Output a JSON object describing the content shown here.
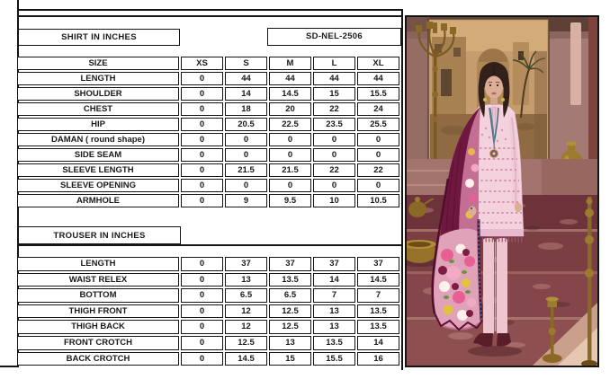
{
  "shirt_section": {
    "title": "SHIRT IN INCHES",
    "article_code": "SD-NEL-2506"
  },
  "trouser_section": {
    "title": "TROUSER IN INCHES"
  },
  "shirt_table": {
    "columns": [
      "SIZE",
      "XS",
      "S",
      "M",
      "L",
      "XL"
    ],
    "rows": [
      {
        "label": "LENGTH",
        "values": [
          "0",
          "44",
          "44",
          "44",
          "44"
        ]
      },
      {
        "label": "SHOULDER",
        "values": [
          "0",
          "14",
          "14.5",
          "15",
          "15.5"
        ]
      },
      {
        "label": "CHEST",
        "values": [
          "0",
          "18",
          "20",
          "22",
          "24"
        ]
      },
      {
        "label": "HIP",
        "values": [
          "0",
          "20.5",
          "22.5",
          "23.5",
          "25.5"
        ]
      },
      {
        "label": "DAMAN ( round shape)",
        "values": [
          "0",
          "0",
          "0",
          "0",
          "0"
        ]
      },
      {
        "label": "SIDE SEAM",
        "values": [
          "0",
          "0",
          "0",
          "0",
          "0"
        ]
      },
      {
        "label": "SLEEVE LENGTH",
        "values": [
          "0",
          "21.5",
          "21.5",
          "22",
          "22"
        ]
      },
      {
        "label": "SLEEVE OPENING",
        "values": [
          "0",
          "0",
          "0",
          "0",
          "0"
        ]
      },
      {
        "label": "ARMHOLE",
        "values": [
          "0",
          "9",
          "9.5",
          "10",
          "10.5"
        ]
      }
    ]
  },
  "trouser_table": {
    "rows": [
      {
        "label": "LENGTH",
        "values": [
          "0",
          "37",
          "37",
          "37",
          "37"
        ]
      },
      {
        "label": "WAIST RELEX",
        "values": [
          "0",
          "13",
          "13.5",
          "14",
          "14.5"
        ]
      },
      {
        "label": "BOTTOM",
        "values": [
          "0",
          "6.5",
          "6.5",
          "7",
          "7"
        ]
      },
      {
        "label": "THIGH FRONT",
        "values": [
          "0",
          "12",
          "12.5",
          "13",
          "13.5"
        ]
      },
      {
        "label": "THIGH BACK",
        "values": [
          "0",
          "12",
          "12.5",
          "13",
          "13.5"
        ]
      },
      {
        "label": "FRONT CROTCH",
        "values": [
          "0",
          "12.5",
          "13",
          "13.5",
          "14"
        ]
      },
      {
        "label": "BACK CROTCH",
        "values": [
          "0",
          "14.5",
          "15",
          "15.5",
          "16"
        ]
      }
    ]
  },
  "table_style": {
    "border_color": "#141414",
    "text_color": "#1a1a1a"
  },
  "photo": {
    "description": "Model wearing light-pink embroidered suit with maroon floral dupatta on burgundy stone steps",
    "palette": {
      "photo-wall": "#a47a74",
      "photo-wall-dark": "#5e4036",
      "photo-painting": "#c59c6d",
      "photo-stairs": "#7a3f44",
      "photo-stairs-dark": "#6d323a",
      "photo-dress": "#f3d2de",
      "photo-dress-accent": "#d88faf",
      "photo-dupatta": "#6e1840",
      "photo-dupatta-floral": "#e75f95",
      "photo-brass": "#8a6826",
      "photo-trouser": "#eec6cf",
      "photo-skin": "#dcae96",
      "photo-hair": "#32211b"
    }
  }
}
